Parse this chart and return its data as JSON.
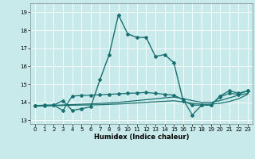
{
  "xlabel": "Humidex (Indice chaleur)",
  "bg_color": "#c8eaea",
  "grid_color": "#ffffff",
  "line_color": "#1a7070",
  "xlim": [
    -0.5,
    23.5
  ],
  "ylim": [
    12.8,
    19.5
  ],
  "yticks": [
    13,
    14,
    15,
    16,
    17,
    18,
    19
  ],
  "xticks": [
    0,
    1,
    2,
    3,
    4,
    5,
    6,
    7,
    8,
    9,
    10,
    11,
    12,
    13,
    14,
    15,
    16,
    17,
    18,
    19,
    20,
    21,
    22,
    23
  ],
  "series": [
    {
      "x": [
        0,
        1,
        2,
        3,
        4,
        5,
        6,
        7,
        8,
        9,
        10,
        11,
        12,
        13,
        14,
        15,
        16,
        17,
        18,
        19,
        20,
        21,
        22,
        23
      ],
      "y": [
        13.8,
        13.85,
        13.85,
        14.1,
        13.55,
        13.65,
        13.75,
        15.25,
        16.65,
        18.85,
        17.8,
        17.6,
        17.6,
        16.55,
        16.65,
        16.2,
        14.1,
        13.85,
        13.85,
        13.85,
        14.35,
        14.65,
        14.5,
        14.65
      ],
      "style": "-",
      "marker": "D",
      "markersize": 2.0,
      "linewidth": 1.0,
      "zorder": 3
    },
    {
      "x": [
        0,
        1,
        2,
        3,
        4,
        5,
        6,
        7,
        8,
        9,
        10,
        11,
        12,
        13,
        14,
        15,
        16,
        17,
        18,
        19,
        20,
        21,
        22,
        23
      ],
      "y": [
        13.8,
        13.82,
        13.84,
        13.86,
        13.88,
        13.9,
        13.92,
        13.94,
        13.97,
        14.0,
        14.05,
        14.1,
        14.15,
        14.2,
        14.25,
        14.3,
        14.2,
        14.1,
        14.0,
        14.0,
        14.1,
        14.25,
        14.4,
        14.5
      ],
      "style": "-",
      "marker": null,
      "markersize": 0,
      "linewidth": 0.9,
      "zorder": 2
    },
    {
      "x": [
        0,
        1,
        2,
        3,
        4,
        5,
        6,
        7,
        8,
        9,
        10,
        11,
        12,
        13,
        14,
        15,
        16,
        17,
        18,
        19,
        20,
        21,
        22,
        23
      ],
      "y": [
        13.8,
        13.81,
        13.82,
        13.83,
        13.84,
        13.85,
        13.86,
        13.87,
        13.89,
        13.91,
        13.94,
        13.97,
        14.0,
        14.03,
        14.06,
        14.09,
        14.02,
        13.95,
        13.9,
        13.9,
        13.95,
        14.05,
        14.2,
        14.45
      ],
      "style": "-",
      "marker": null,
      "markersize": 0,
      "linewidth": 0.9,
      "zorder": 2
    },
    {
      "x": [
        0,
        1,
        2,
        3,
        4,
        5,
        6,
        7,
        8,
        9,
        10,
        11,
        12,
        13,
        14,
        15,
        16,
        17,
        18,
        19,
        20,
        21,
        22,
        23
      ],
      "y": [
        13.8,
        13.82,
        13.84,
        13.55,
        14.35,
        14.38,
        14.4,
        14.42,
        14.45,
        14.47,
        14.5,
        14.52,
        14.55,
        14.5,
        14.45,
        14.4,
        14.15,
        13.3,
        13.85,
        13.85,
        14.3,
        14.5,
        14.45,
        14.65
      ],
      "style": "-",
      "marker": "D",
      "markersize": 2.0,
      "linewidth": 0.9,
      "zorder": 3
    }
  ]
}
